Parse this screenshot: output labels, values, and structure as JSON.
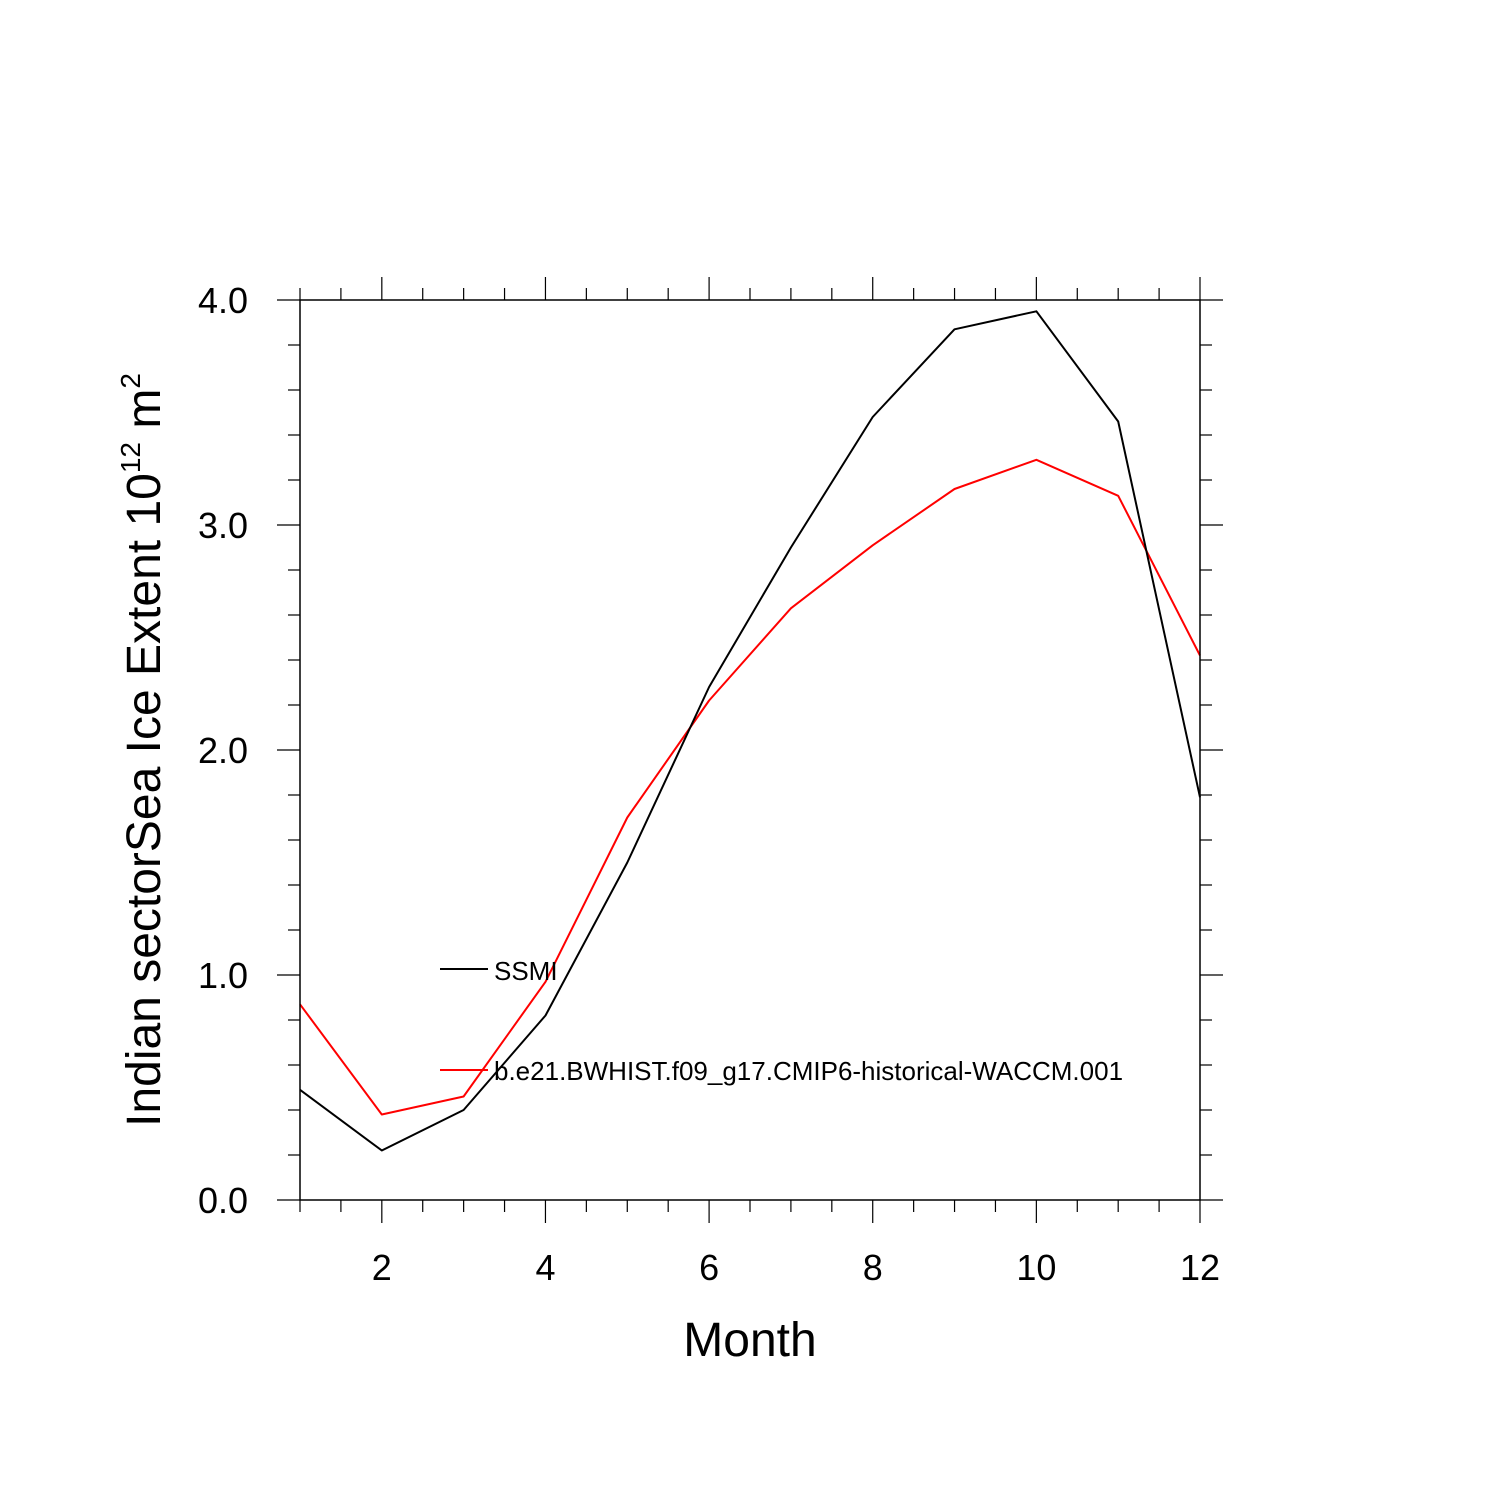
{
  "chart_data": {
    "type": "line",
    "xlabel": "Month",
    "ylabel_main": "Indian sectorSea Ice Extent 10",
    "ylabel_exp1": "12",
    "ylabel_mid": " m",
    "ylabel_exp2": "2",
    "xlim": [
      1,
      12
    ],
    "ylim": [
      0,
      4
    ],
    "xticks": [
      2,
      4,
      6,
      8,
      10,
      12
    ],
    "xtick_labels": [
      "2",
      "4",
      "6",
      "8",
      "10",
      "12"
    ],
    "yticks": [
      0,
      1,
      2,
      3,
      4
    ],
    "ytick_labels": [
      "0.0",
      "1.0",
      "2.0",
      "3.0",
      "4.0"
    ],
    "legend_position": "inside-left-center",
    "grid": false,
    "x": [
      1,
      2,
      3,
      4,
      5,
      6,
      7,
      8,
      9,
      10,
      11,
      12
    ],
    "series": [
      {
        "name": "SSMI",
        "color": "#000000",
        "values": [
          0.49,
          0.22,
          0.4,
          0.82,
          1.5,
          2.28,
          2.9,
          3.48,
          3.87,
          3.95,
          3.46,
          1.79
        ]
      },
      {
        "name": "b.e21.BWHIST.f09_g17.CMIP6-historical-WACCM.001",
        "color": "#ff0000",
        "values": [
          0.87,
          0.38,
          0.46,
          0.97,
          1.7,
          2.22,
          2.63,
          2.91,
          3.16,
          3.29,
          3.13,
          2.42
        ]
      }
    ]
  }
}
